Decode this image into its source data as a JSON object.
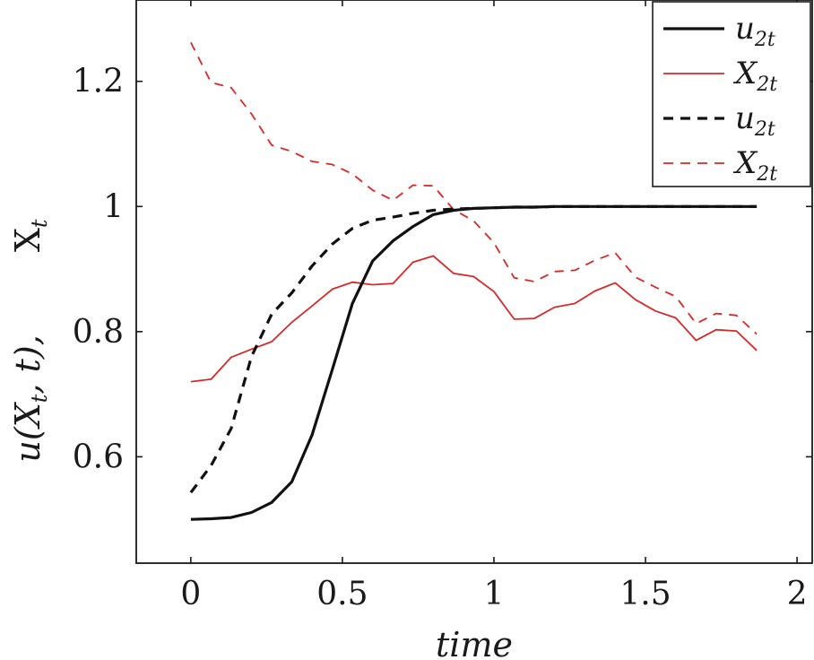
{
  "chart_data": {
    "type": "line",
    "xlabel": "time",
    "ylabel_parts": [
      "X",
      "t",
      "u(X",
      "t",
      ", t),"
    ],
    "xlim": [
      -0.18,
      2.05
    ],
    "ylim": [
      0.43,
      1.33
    ],
    "xticks": [
      {
        "value": 0,
        "label": "0"
      },
      {
        "value": 0.5,
        "label": "0.5"
      },
      {
        "value": 1,
        "label": "1"
      },
      {
        "value": 1.5,
        "label": "1.5"
      },
      {
        "value": 2,
        "label": "2"
      }
    ],
    "yticks": [
      {
        "value": 0.6,
        "label": "0.6"
      },
      {
        "value": 0.8,
        "label": "0.8"
      },
      {
        "value": 1,
        "label": "1"
      },
      {
        "value": 1.2,
        "label": "1.2"
      }
    ],
    "legend_position": "top-right",
    "series": [
      {
        "name": "u",
        "sub": "2t",
        "color": "#111111",
        "style": "solid",
        "width": 3.2,
        "x": [
          0,
          0.067,
          0.133,
          0.2,
          0.267,
          0.333,
          0.4,
          0.467,
          0.533,
          0.6,
          0.667,
          0.733,
          0.8,
          0.867,
          0.933,
          1.0,
          1.067,
          1.133,
          1.2,
          1.267,
          1.333,
          1.4,
          1.467,
          1.533,
          1.6,
          1.667,
          1.733,
          1.8,
          1.867
        ],
        "y": [
          0.5,
          0.501,
          0.503,
          0.511,
          0.527,
          0.56,
          0.635,
          0.74,
          0.845,
          0.913,
          0.945,
          0.968,
          0.987,
          0.994,
          0.997,
          0.998,
          0.999,
          0.999,
          1.0,
          1.0,
          1.0,
          1.0,
          1.0,
          1.0,
          1.0,
          1.0,
          1.0,
          1.0,
          1.0
        ]
      },
      {
        "name": "X",
        "sub": "2t",
        "color": "#d42a2a",
        "style": "solid",
        "width": 1.8,
        "x": [
          0,
          0.067,
          0.133,
          0.2,
          0.267,
          0.333,
          0.4,
          0.467,
          0.533,
          0.6,
          0.667,
          0.733,
          0.8,
          0.867,
          0.933,
          1.0,
          1.067,
          1.133,
          1.2,
          1.267,
          1.333,
          1.4,
          1.467,
          1.533,
          1.6,
          1.667,
          1.733,
          1.8,
          1.867
        ],
        "y": [
          0.72,
          0.724,
          0.759,
          0.772,
          0.784,
          0.815,
          0.841,
          0.868,
          0.879,
          0.875,
          0.877,
          0.911,
          0.921,
          0.893,
          0.888,
          0.864,
          0.82,
          0.821,
          0.839,
          0.845,
          0.865,
          0.878,
          0.851,
          0.833,
          0.822,
          0.786,
          0.803,
          0.801,
          0.77
        ]
      },
      {
        "name": "u",
        "sub": "2t",
        "color": "#111111",
        "style": "dashed",
        "width": 3.2,
        "x": [
          0,
          0.067,
          0.133,
          0.2,
          0.267,
          0.333,
          0.4,
          0.467,
          0.533,
          0.6,
          0.667,
          0.733,
          0.8,
          0.867,
          0.933,
          1.0,
          1.067,
          1.133,
          1.2,
          1.267,
          1.333,
          1.4,
          1.467,
          1.533,
          1.6,
          1.667,
          1.733,
          1.8,
          1.867
        ],
        "y": [
          0.543,
          0.586,
          0.645,
          0.76,
          0.828,
          0.862,
          0.905,
          0.94,
          0.965,
          0.978,
          0.983,
          0.989,
          0.994,
          0.996,
          0.997,
          0.998,
          0.999,
          0.999,
          1.0,
          1.0,
          1.0,
          1.0,
          1.0,
          1.0,
          1.0,
          1.0,
          1.0,
          1.0,
          1.0
        ]
      },
      {
        "name": "X",
        "sub": "2t",
        "color": "#d42a2a",
        "style": "dashed",
        "width": 1.8,
        "x": [
          0,
          0.067,
          0.133,
          0.2,
          0.267,
          0.333,
          0.4,
          0.467,
          0.533,
          0.6,
          0.667,
          0.733,
          0.8,
          0.867,
          0.933,
          1.0,
          1.067,
          1.133,
          1.2,
          1.267,
          1.333,
          1.4,
          1.467,
          1.533,
          1.6,
          1.667,
          1.733,
          1.8,
          1.867
        ],
        "y": [
          1.262,
          1.198,
          1.19,
          1.148,
          1.098,
          1.088,
          1.072,
          1.067,
          1.052,
          1.026,
          1.01,
          1.034,
          1.033,
          0.995,
          0.977,
          0.942,
          0.886,
          0.88,
          0.896,
          0.898,
          0.914,
          0.926,
          0.887,
          0.871,
          0.856,
          0.813,
          0.829,
          0.826,
          0.796
        ]
      }
    ]
  }
}
